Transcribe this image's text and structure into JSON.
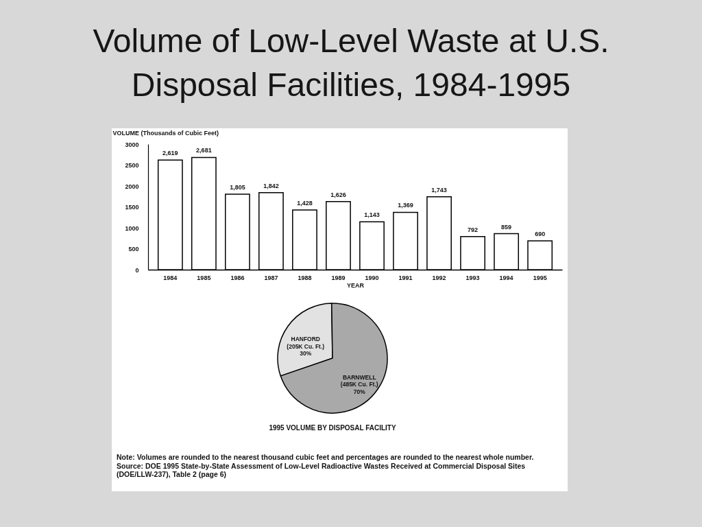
{
  "chart_data": [
    {
      "type": "bar",
      "title": "Volume of Low-Level Waste at U.S. Disposal Facilities, 1984-1995",
      "xlabel": "YEAR",
      "ylabel": "VOLUME (Thousands of Cubic Feet)",
      "categories": [
        "1984",
        "1985",
        "1986",
        "1987",
        "1988",
        "1989",
        "1990",
        "1991",
        "1992",
        "1993",
        "1994",
        "1995"
      ],
      "values": [
        2619,
        2681,
        1805,
        1842,
        1428,
        1626,
        1143,
        1369,
        1743,
        792,
        859,
        690
      ],
      "value_labels": [
        "2,619",
        "2,681",
        "1,805",
        "1,842",
        "1,428",
        "1,626",
        "1,143",
        "1,369",
        "1,743",
        "792",
        "859",
        "690"
      ],
      "color": "#ffffff",
      "ylim": [
        0,
        3000
      ],
      "yticks": [
        0,
        500,
        1000,
        1500,
        2000,
        2500,
        3000
      ]
    },
    {
      "type": "pie",
      "title": "1995 VOLUME BY DISPOSAL FACILITY",
      "categories": [
        "HANFORD",
        "BARNWELL"
      ],
      "values": [
        30,
        70
      ],
      "colors": [
        "#e2e2e2",
        "#a9a9a9"
      ],
      "value_labels": [
        "(205K Cu. Ft.)\n30%",
        "(485K Cu. Ft.)\n70%"
      ],
      "annotations": [
        "Note: Volumes are rounded to the nearest thousand cubic feet and percentages are rounded to the nearest whole number.",
        "Source: DOE 1995 State-by-State Assessment of Low-Level Radioactive Wastes Received at Commercial Disposal Sites (DOE/LLW-237), Table 2 (page 6)"
      ]
    }
  ]
}
